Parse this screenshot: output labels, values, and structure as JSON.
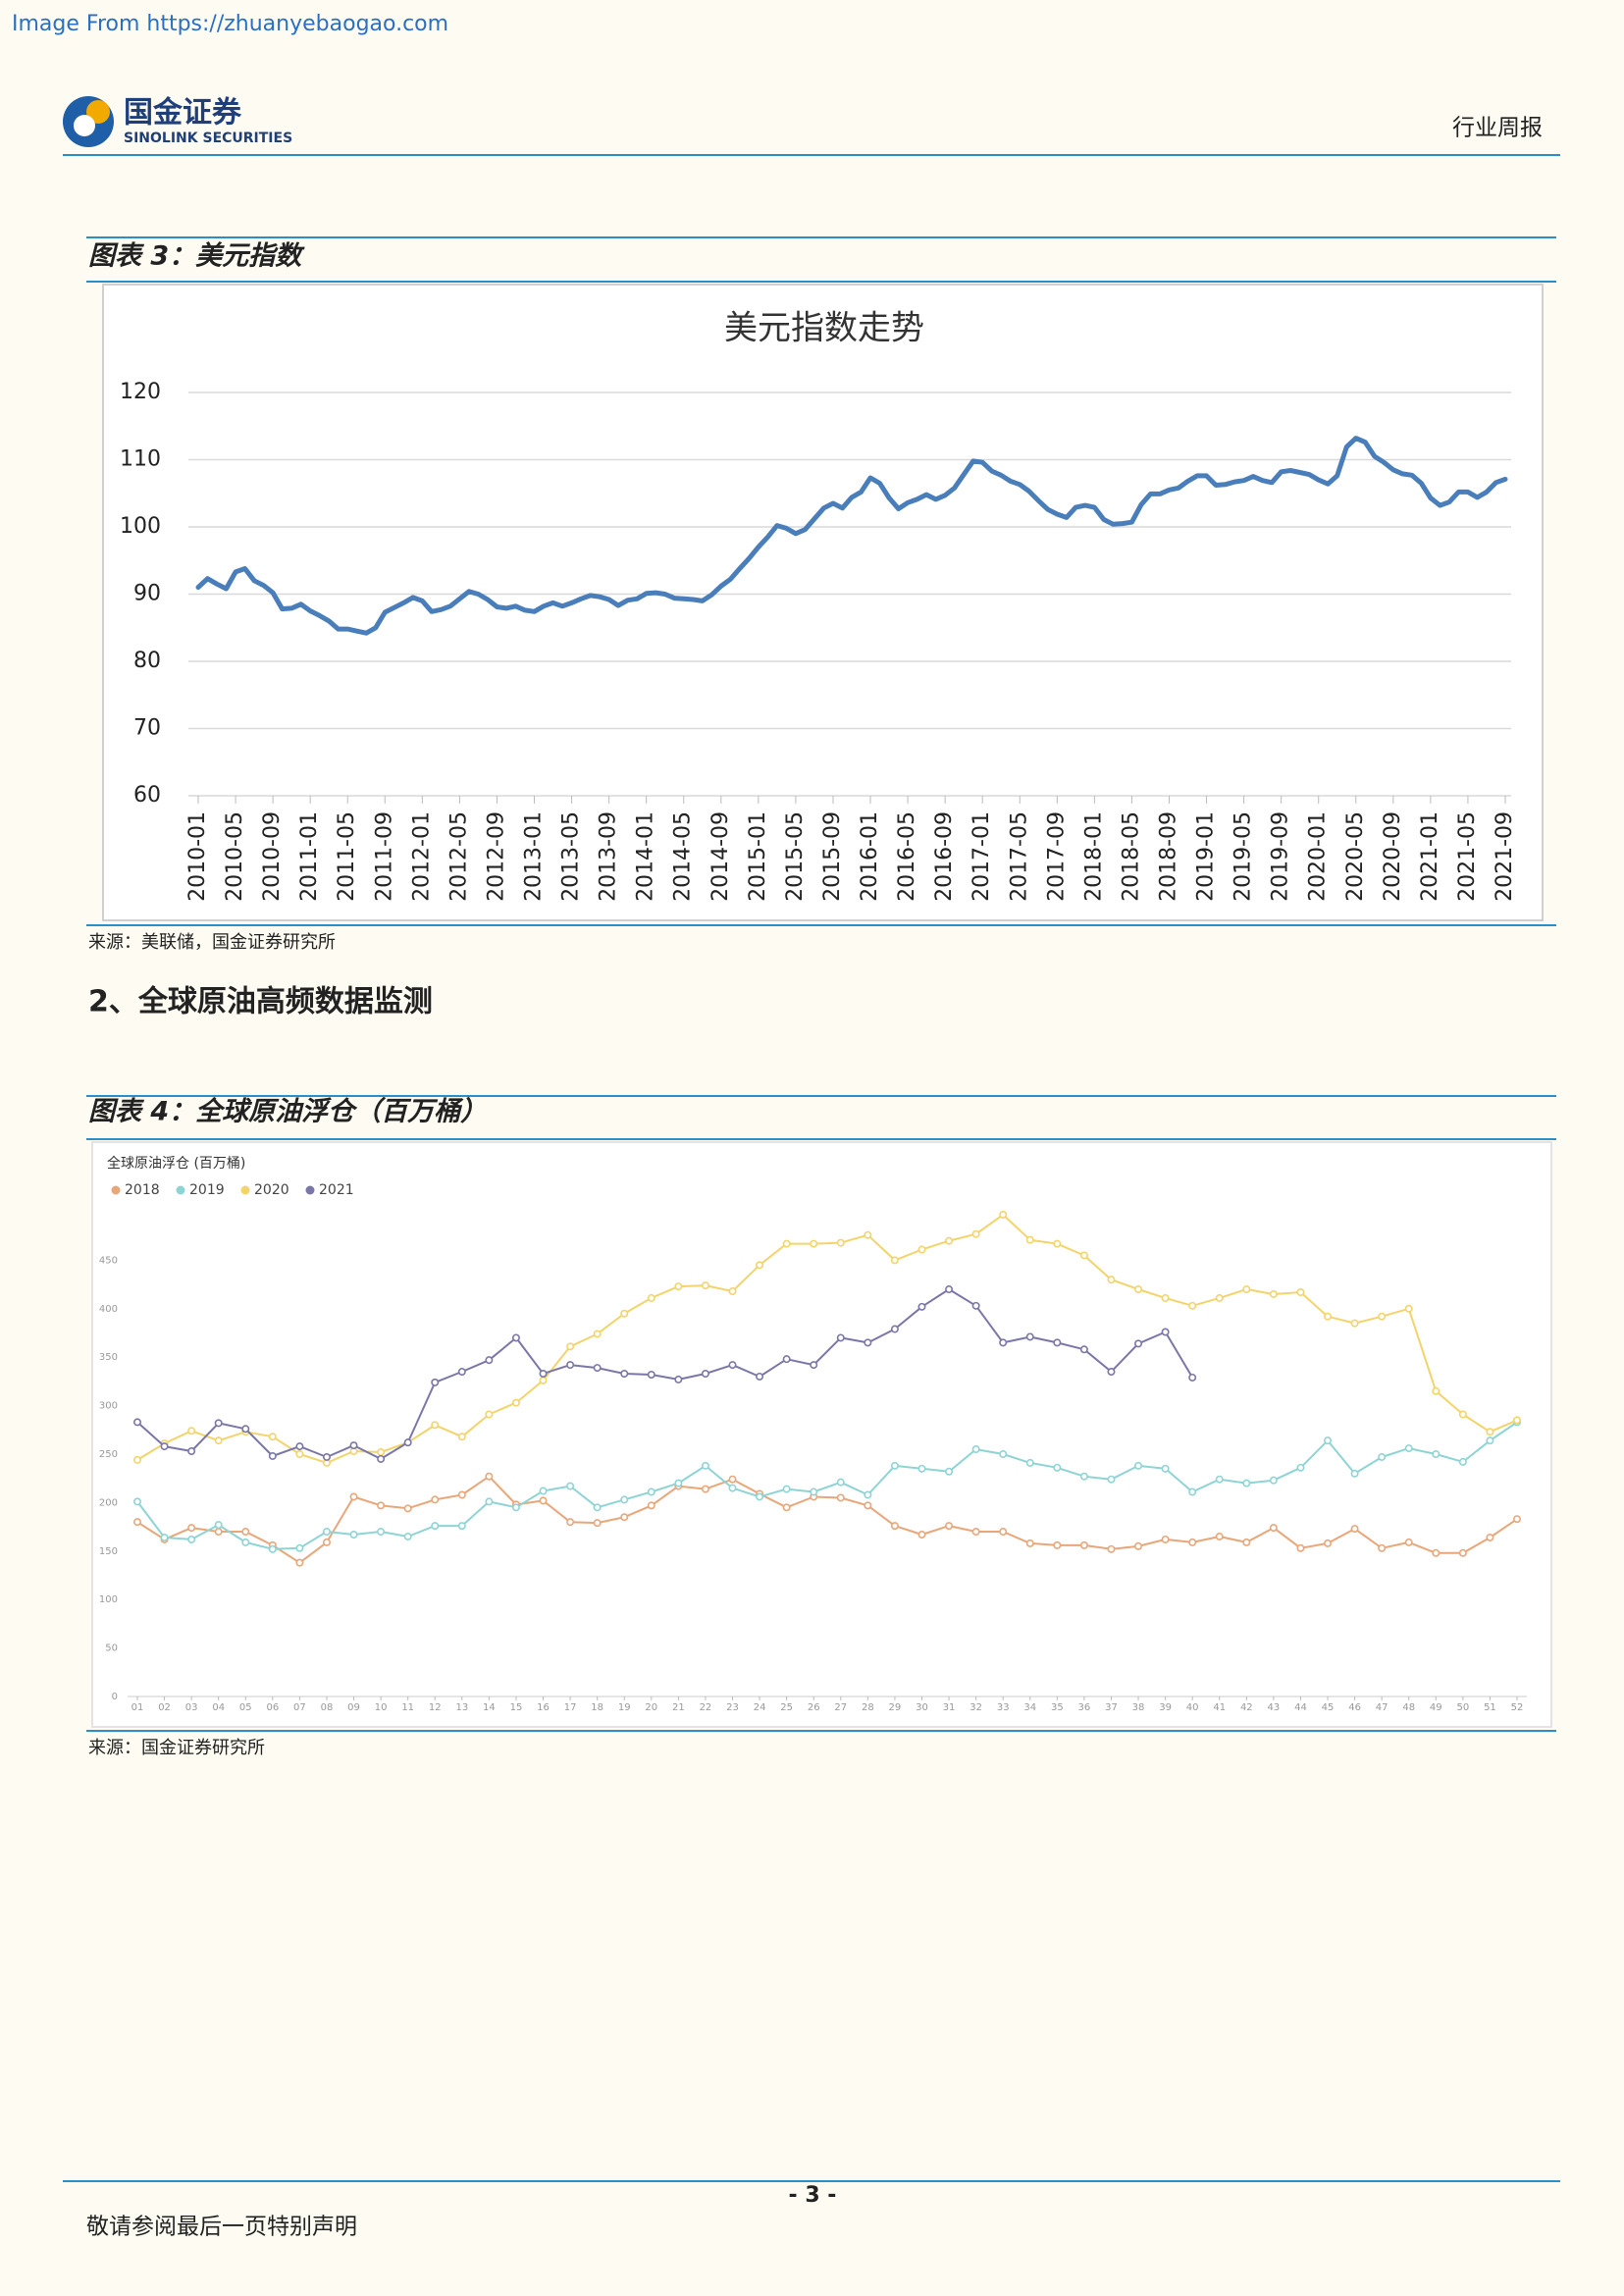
{
  "watermark": "Image From https://zhuanyebaogao.com",
  "header": {
    "logo_cn": "国金证券",
    "logo_en": "SINOLINK SECURITIES",
    "report_type": "行业周报"
  },
  "figure3": {
    "caption": "图表 3：美元指数",
    "source": "来源：美联储，国金证券研究所"
  },
  "section_title": "2、全球原油高频数据监测",
  "figure4": {
    "caption": "图表 4：全球原油浮仓（百万桶）",
    "source": "来源：国金证券研究所"
  },
  "footer": {
    "page_number": "- 3 -",
    "disclaimer": "敬请参阅最后一页特别声明"
  },
  "chart_data": [
    {
      "type": "line",
      "title": "美元指数走势",
      "color": "#4a7ebb",
      "grid": true,
      "ylim": [
        60,
        120
      ],
      "yticks": [
        60,
        70,
        80,
        90,
        100,
        110,
        120
      ],
      "categories": [
        "2010-01",
        null,
        null,
        null,
        "2010-05",
        null,
        null,
        null,
        "2010-09",
        null,
        null,
        null,
        "2011-01",
        null,
        null,
        null,
        "2011-05",
        null,
        null,
        null,
        "2011-09",
        null,
        null,
        null,
        "2012-01",
        null,
        null,
        null,
        "2012-05",
        null,
        null,
        null,
        "2012-09",
        null,
        null,
        null,
        "2013-01",
        null,
        null,
        null,
        "2013-05",
        null,
        null,
        null,
        "2013-09",
        null,
        null,
        null,
        "2014-01",
        null,
        null,
        null,
        "2014-05",
        null,
        null,
        null,
        "2014-09",
        null,
        null,
        null,
        "2015-01",
        null,
        null,
        null,
        "2015-05",
        null,
        null,
        null,
        "2015-09",
        null,
        null,
        null,
        "2016-01",
        null,
        null,
        null,
        "2016-05",
        null,
        null,
        null,
        "2016-09",
        null,
        null,
        null,
        "2017-01",
        null,
        null,
        null,
        "2017-05",
        null,
        null,
        null,
        "2017-09",
        null,
        null,
        null,
        "2018-01",
        null,
        null,
        null,
        "2018-05",
        null,
        null,
        null,
        "2018-09",
        null,
        null,
        null,
        "2019-01",
        null,
        null,
        null,
        "2019-05",
        null,
        null,
        null,
        "2019-09",
        null,
        null,
        null,
        "2020-01",
        null,
        null,
        null,
        "2020-05",
        null,
        null,
        null,
        "2020-09",
        null,
        null,
        null,
        "2021-01",
        null,
        null,
        null,
        "2021-05",
        null,
        null,
        null,
        "2021-09"
      ],
      "values": [
        91,
        92.3,
        91.5,
        90.8,
        93.3,
        93.8,
        92,
        91.3,
        90.2,
        87.8,
        87.9,
        88.5,
        87.5,
        86.8,
        86,
        84.8,
        84.8,
        84.5,
        84.2,
        85,
        87.3,
        88,
        88.7,
        89.5,
        89,
        87.4,
        87.7,
        88.2,
        89.3,
        90.4,
        90,
        89.2,
        88.1,
        87.9,
        88.2,
        87.6,
        87.4,
        88.2,
        88.7,
        88.2,
        88.7,
        89.3,
        89.8,
        89.6,
        89.2,
        88.3,
        89.1,
        89.3,
        90.1,
        90.2,
        90,
        89.4,
        89.3,
        89.2,
        89,
        89.9,
        91.2,
        92.2,
        93.8,
        95.3,
        97,
        98.5,
        100.2,
        99.8,
        99,
        99.6,
        101.2,
        102.8,
        103.5,
        102.8,
        104.4,
        105.2,
        107.3,
        106.5,
        104.3,
        102.7,
        103.6,
        104.1,
        104.8,
        104.1,
        104.7,
        105.8,
        107.8,
        109.8,
        109.6,
        108.3,
        107.7,
        106.8,
        106.3,
        105.3,
        103.9,
        102.6,
        101.9,
        101.4,
        102.9,
        103.2,
        102.9,
        101.1,
        100.4,
        100.5,
        100.7,
        103.3,
        104.9,
        104.9,
        105.5,
        105.8,
        106.8,
        107.6,
        107.6,
        106.2,
        106.3,
        106.7,
        106.9,
        107.5,
        106.9,
        106.6,
        108.2,
        108.4,
        108.1,
        107.8,
        107,
        106.4,
        107.6,
        111.9,
        113.2,
        112.6,
        110.5,
        109.6,
        108.5,
        107.9,
        107.7,
        106.5,
        104.3,
        103.2,
        103.7,
        105.2,
        105.2,
        104.4,
        105.2,
        106.6,
        107.1
      ]
    },
    {
      "type": "line",
      "title": "全球原油浮仓 (百万桶)",
      "grid": false,
      "markers": true,
      "legend": "top-left",
      "ylim": [
        0,
        500
      ],
      "yticks": [
        0,
        50,
        100,
        150,
        200,
        250,
        300,
        350,
        400,
        450
      ],
      "categories": [
        "01",
        "02",
        "03",
        "04",
        "05",
        "06",
        "07",
        "08",
        "09",
        "10",
        "11",
        "12",
        "13",
        "14",
        "15",
        "16",
        "17",
        "18",
        "19",
        "20",
        "21",
        "22",
        "23",
        "24",
        "25",
        "26",
        "27",
        "28",
        "29",
        "30",
        "31",
        "32",
        "33",
        "34",
        "35",
        "36",
        "37",
        "38",
        "39",
        "40",
        "41",
        "42",
        "43",
        "44",
        "45",
        "46",
        "47",
        "48",
        "49",
        "50",
        "51",
        "52"
      ],
      "series": [
        {
          "name": "2018",
          "color": "#e9a679",
          "values": [
            180,
            162,
            174,
            170,
            170,
            156,
            138,
            159,
            206,
            197,
            194,
            203,
            208,
            227,
            198,
            202,
            180,
            179,
            185,
            197,
            217,
            214,
            224,
            209,
            195,
            206,
            205,
            197,
            176,
            167,
            176,
            170,
            170,
            158,
            156,
            156,
            152,
            155,
            162,
            159,
            165,
            159,
            174,
            153,
            158,
            173,
            153,
            159,
            148,
            148,
            164,
            183
          ]
        },
        {
          "name": "2019",
          "color": "#8fd4d4",
          "values": [
            201,
            164,
            162,
            177,
            159,
            152,
            153,
            170,
            167,
            170,
            165,
            176,
            176,
            201,
            195,
            212,
            217,
            195,
            203,
            211,
            220,
            238,
            215,
            206,
            214,
            211,
            221,
            208,
            238,
            235,
            232,
            255,
            250,
            241,
            236,
            227,
            224,
            238,
            235,
            211,
            224,
            220,
            223,
            236,
            264,
            230,
            247,
            256,
            250,
            242,
            264,
            283
          ]
        },
        {
          "name": "2020",
          "color": "#f3d46a",
          "values": [
            244,
            261,
            274,
            264,
            273,
            268,
            250,
            241,
            253,
            252,
            262,
            280,
            268,
            291,
            303,
            326,
            361,
            374,
            395,
            411,
            423,
            424,
            418,
            445,
            467,
            467,
            468,
            476,
            450,
            461,
            470,
            477,
            497,
            471,
            467,
            455,
            430,
            420,
            411,
            403,
            411,
            420,
            415,
            417,
            392,
            385,
            392,
            400,
            315,
            291,
            273,
            285
          ]
        },
        {
          "name": "2021",
          "color": "#7a77a8",
          "values": [
            283,
            258,
            253,
            282,
            276,
            248,
            258,
            247,
            259,
            245,
            262,
            324,
            335,
            347,
            370,
            333,
            342,
            339,
            333,
            332,
            327,
            333,
            342,
            330,
            348,
            342,
            370,
            365,
            379,
            402,
            420,
            403,
            365,
            371,
            365,
            358,
            335,
            364,
            376,
            329,
            null,
            null,
            null,
            null,
            null,
            null,
            null,
            null,
            null,
            null,
            null,
            null
          ]
        }
      ]
    }
  ]
}
